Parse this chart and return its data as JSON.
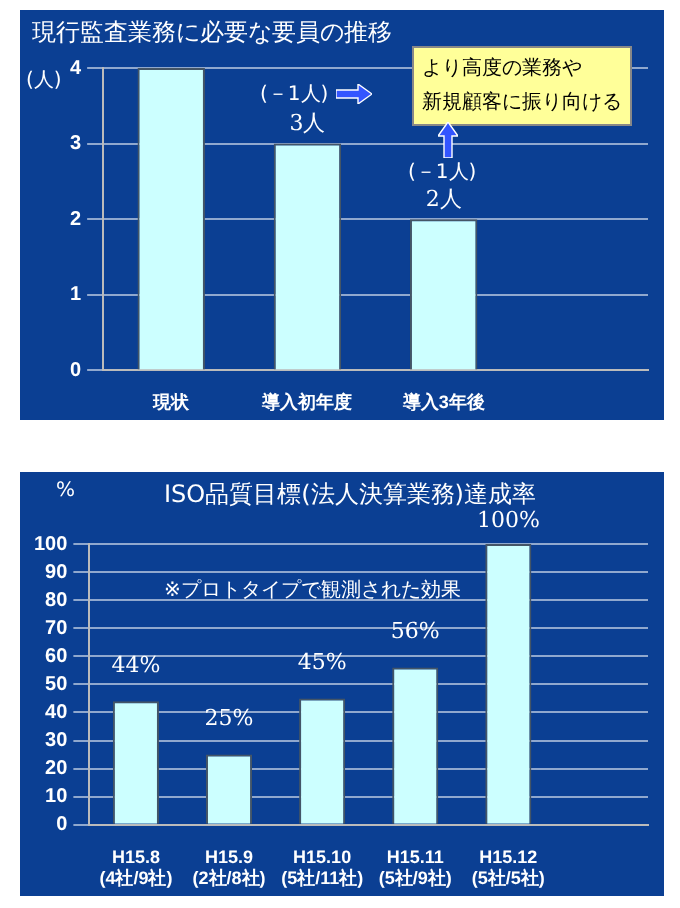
{
  "chart_data": [
    {
      "type": "bar",
      "title": "現行監査業務に必要な要員の推移",
      "ylabel": "(人)",
      "categories": [
        "現状",
        "導入初年度",
        "導入3年後",
        null
      ],
      "values": [
        4,
        3,
        2,
        null
      ],
      "value_labels": [
        null,
        "3人",
        "2人",
        null
      ],
      "color": "#ccffff",
      "ylim": [
        0,
        4
      ],
      "yticks": [
        0,
        1,
        2,
        3,
        4
      ],
      "grid": "y",
      "annotations": [
        "(－1人)",
        "(－1人)",
        "より高度の業務や",
        "新規顧客に振り向ける"
      ]
    },
    {
      "type": "bar",
      "title": "ISO品質目標(法人決算業務)達成率",
      "ylabel": "%",
      "categories": [
        "H15.8\n(4社/9社)",
        "H15.9\n(2社/8社)",
        "H15.10\n(5社/11社)",
        "H15.11\n(5社/9社)",
        "H15.12\n(5社/5社)",
        null
      ],
      "values": [
        44,
        25,
        45,
        56,
        100,
        null
      ],
      "value_labels": [
        "44%",
        "25%",
        "45%",
        "56%",
        "100%",
        null
      ],
      "color": "#ccffff",
      "ylim": [
        0,
        100
      ],
      "yticks": [
        0,
        10,
        20,
        30,
        40,
        50,
        60,
        70,
        80,
        90,
        100
      ],
      "grid": "y",
      "annotations": [
        "※プロトタイプで観測された効果"
      ]
    }
  ]
}
